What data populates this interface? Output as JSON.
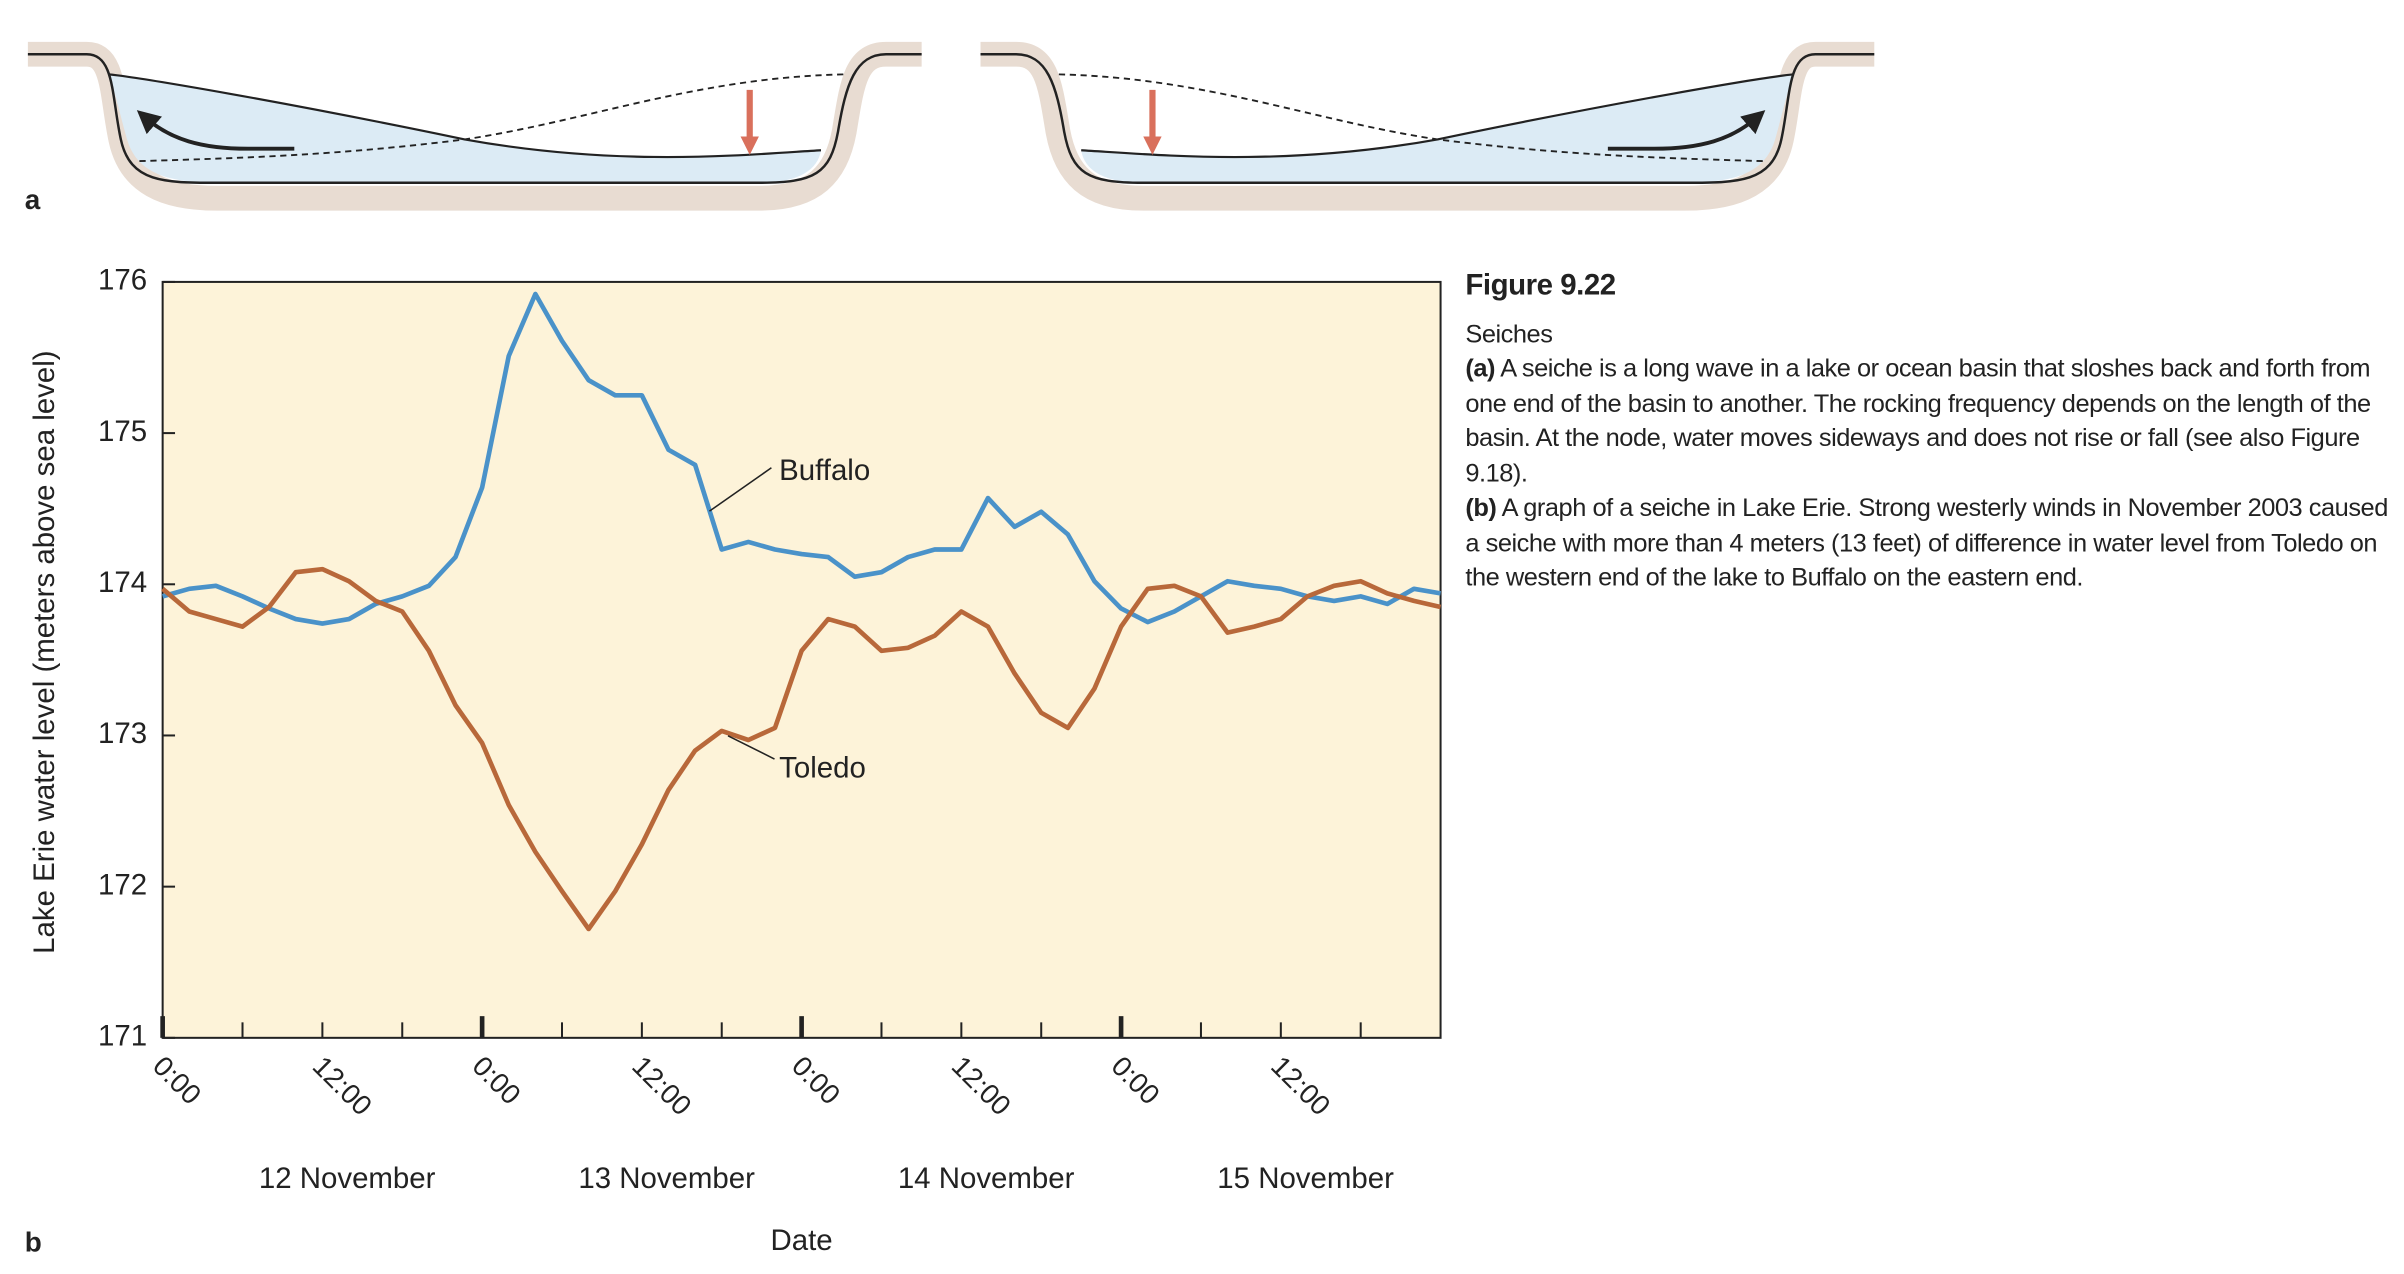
{
  "panel_labels": {
    "a": "a",
    "b": "b"
  },
  "caption": {
    "figure": "Figure 9.22",
    "title": "Seiches",
    "part_a_label": "(a)",
    "part_a": "A seiche is a long wave in a lake or ocean basin that sloshes back and forth from one end of the basin to another. The rocking frequency depends on the length of the basin. At the node, water moves sideways and does not rise or fall (see also Figure 9.18).",
    "part_b_label": "(b)",
    "part_b": "A graph of a seiche in Lake Erie. Strong westerly winds in November 2003 caused a seiche with more than 4 meters (13 feet) of difference in water level from Toledo on the western end of the lake to Buffalo on the eastern end."
  },
  "chart_data": {
    "type": "line",
    "x_label": "Date",
    "y_label": "Lake Erie water level (meters above sea level)",
    "x": [
      0,
      2,
      4,
      6,
      8,
      10,
      12,
      14,
      16,
      18,
      20,
      22,
      24,
      26,
      28,
      30,
      32,
      34,
      36,
      38,
      40,
      42,
      44,
      46,
      48,
      50,
      52,
      54,
      56,
      58,
      60,
      62,
      64,
      66,
      68,
      70,
      72,
      74,
      76,
      78,
      80,
      82,
      84,
      86,
      88,
      90,
      92,
      94,
      96
    ],
    "series": [
      {
        "name": "Buffalo",
        "color": "#4a92c9",
        "values": [
          173.92,
          173.97,
          173.99,
          173.92,
          173.84,
          173.77,
          173.74,
          173.77,
          173.87,
          173.92,
          173.99,
          174.18,
          174.64,
          175.51,
          175.92,
          175.61,
          175.35,
          175.25,
          175.25,
          174.89,
          174.79,
          174.23,
          174.28,
          174.23,
          174.2,
          174.18,
          174.05,
          174.08,
          174.18,
          174.23,
          174.23,
          174.57,
          174.38,
          174.48,
          174.33,
          174.02,
          173.84,
          173.75,
          173.82,
          173.92,
          174.02,
          173.99,
          173.97,
          173.92,
          173.89,
          173.92,
          173.87,
          173.97,
          173.94
        ]
      },
      {
        "name": "Toledo",
        "color": "#b8683a",
        "values": [
          173.97,
          173.82,
          173.77,
          173.72,
          173.85,
          174.08,
          174.1,
          174.02,
          173.89,
          173.82,
          173.56,
          173.2,
          172.95,
          172.54,
          172.23,
          171.97,
          171.72,
          171.97,
          172.28,
          172.64,
          172.9,
          173.03,
          172.97,
          173.05,
          173.56,
          173.77,
          173.72,
          173.56,
          173.58,
          173.66,
          173.82,
          173.72,
          173.41,
          173.15,
          173.05,
          173.31,
          173.72,
          173.97,
          173.99,
          173.92,
          173.68,
          173.72,
          173.77,
          173.92,
          173.99,
          174.02,
          173.94,
          173.89,
          173.85
        ]
      }
    ],
    "xlim": [
      0,
      96
    ],
    "ylim": [
      171,
      176
    ],
    "xticks": [
      {
        "value": 0,
        "label": "0:00"
      },
      {
        "value": 12,
        "label": "12:00"
      },
      {
        "value": 24,
        "label": "0:00"
      },
      {
        "value": 36,
        "label": "12:00"
      },
      {
        "value": 48,
        "label": "0:00"
      },
      {
        "value": 60,
        "label": "12:00"
      },
      {
        "value": 72,
        "label": "0:00"
      },
      {
        "value": 84,
        "label": "12:00"
      }
    ],
    "xminor_ticks": [
      6,
      18,
      30,
      42,
      54,
      66,
      78,
      90
    ],
    "xday_ticks": [
      {
        "value": 12,
        "label": "12 November"
      },
      {
        "value": 36,
        "label": "13 November"
      },
      {
        "value": 60,
        "label": "14 November"
      },
      {
        "value": 84,
        "label": "15 November"
      }
    ],
    "yticks": [
      171,
      172,
      173,
      174,
      175,
      176
    ],
    "background": "#fdf3d9",
    "grid": false
  }
}
